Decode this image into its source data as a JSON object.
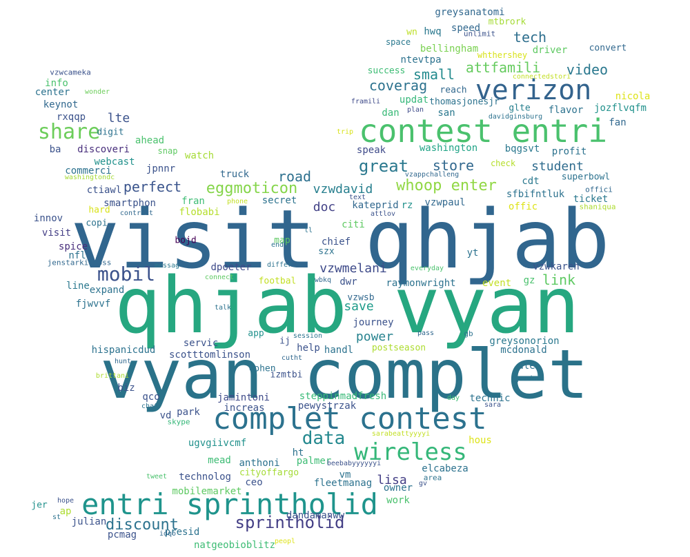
{
  "palette": {
    "viridis": [
      "#440154",
      "#472d7b",
      "#3b528b",
      "#2c728e",
      "#21918c",
      "#28ae80",
      "#5ec962",
      "#addc30",
      "#fde725"
    ],
    "background": "#ffffff"
  },
  "words": [
    {
      "text": "visit qhjab",
      "color": "#31668e"
    },
    {
      "text": "qhjab vyan",
      "color": "#26a780"
    },
    {
      "text": "vyan complet",
      "color": "#2a7289"
    },
    {
      "text": "contest entri",
      "color": "#4ac16d"
    },
    {
      "text": "complet contest",
      "color": "#2c728e"
    },
    {
      "text": "entri sprintholid",
      "color": "#1f948c"
    },
    {
      "text": "verizon",
      "color": "#33638d"
    },
    {
      "text": "wireless",
      "color": "#35b779"
    },
    {
      "text": "share",
      "color": "#6ccd5a"
    },
    {
      "text": "mobil",
      "color": "#3b528b"
    },
    {
      "text": "sprintholid",
      "color": "#433e85"
    },
    {
      "text": "data",
      "color": "#23888e"
    },
    {
      "text": "whoop enter",
      "color": "#90d743"
    },
    {
      "text": "great",
      "color": "#2a788e"
    },
    {
      "text": "eggmoticon",
      "color": "#85d54a"
    },
    {
      "text": "discount",
      "color": "#2c728e"
    },
    {
      "text": "attfamili",
      "color": "#65cb5e"
    },
    {
      "text": "video",
      "color": "#2a788e"
    },
    {
      "text": "coverag",
      "color": "#2c728e"
    },
    {
      "text": "store",
      "color": "#31688e"
    },
    {
      "text": "perfect",
      "color": "#3a548c"
    },
    {
      "text": "road",
      "color": "#2d708e"
    },
    {
      "text": "lte",
      "color": "#3b528b"
    },
    {
      "text": "link",
      "color": "#5ec962"
    },
    {
      "text": "tech",
      "color": "#2e6f8e"
    },
    {
      "text": "small",
      "color": "#238a8d"
    },
    {
      "text": "power",
      "color": "#26828e"
    },
    {
      "text": "vzwdavid",
      "color": "#277f8e"
    },
    {
      "text": "doc",
      "color": "#424186"
    },
    {
      "text": "vzwmelani",
      "color": "#3e4a89"
    },
    {
      "text": "student",
      "color": "#2f6c8e"
    },
    {
      "text": "save",
      "color": "#1e9b8a"
    },
    {
      "text": "lisa",
      "color": "#433e85"
    },
    {
      "text": "greysanatomi",
      "color": "#31688e"
    },
    {
      "text": "mtbrork",
      "color": "#a5db36"
    },
    {
      "text": "wn",
      "color": "#bddf26"
    },
    {
      "text": "hwq",
      "color": "#2a788e"
    },
    {
      "text": "speed",
      "color": "#31688e"
    },
    {
      "text": "unlimit",
      "color": "#3b528b"
    },
    {
      "text": "space",
      "color": "#2a788e"
    },
    {
      "text": "bellingham",
      "color": "#7ad151"
    },
    {
      "text": "driver",
      "color": "#5ec962"
    },
    {
      "text": "convert",
      "color": "#31688e"
    },
    {
      "text": "ntevtpa",
      "color": "#2c728e"
    },
    {
      "text": "whthershey",
      "color": "#d8e219"
    },
    {
      "text": "success",
      "color": "#3dbc74"
    },
    {
      "text": "connectedstori",
      "color": "#c2df23"
    },
    {
      "text": "vzwcameka",
      "color": "#3b528b"
    },
    {
      "text": "info",
      "color": "#4ac16d"
    },
    {
      "text": "center",
      "color": "#2c728e"
    },
    {
      "text": "wonder",
      "color": "#6ccd5a"
    },
    {
      "text": "reach",
      "color": "#31688e"
    },
    {
      "text": "nicola",
      "color": "#dde318"
    },
    {
      "text": "updat",
      "color": "#35b779"
    },
    {
      "text": "framili",
      "color": "#3e4a89"
    },
    {
      "text": "thomasjonesjr",
      "color": "#2c728e"
    },
    {
      "text": "glte",
      "color": "#277f8e"
    },
    {
      "text": "jozflvqfm",
      "color": "#21918c"
    },
    {
      "text": "keynot",
      "color": "#31688e"
    },
    {
      "text": "dan",
      "color": "#38b977"
    },
    {
      "text": "plan",
      "color": "#3e4a89"
    },
    {
      "text": "san",
      "color": "#2a788e"
    },
    {
      "text": "flavor",
      "color": "#2c728e"
    },
    {
      "text": "rxqqp",
      "color": "#3b528b"
    },
    {
      "text": "davidginsburg",
      "color": "#2c728e"
    },
    {
      "text": "fan",
      "color": "#31688e"
    },
    {
      "text": "digit",
      "color": "#2c728e"
    },
    {
      "text": "trip",
      "color": "#d8e219"
    },
    {
      "text": "ahead",
      "color": "#4ac16d"
    },
    {
      "text": "speak",
      "color": "#3e4a89"
    },
    {
      "text": "washington",
      "color": "#20a386"
    },
    {
      "text": "bqgsvt",
      "color": "#2a788e"
    },
    {
      "text": "profit",
      "color": "#2c728e"
    },
    {
      "text": "ba",
      "color": "#3b528b"
    },
    {
      "text": "discoveri",
      "color": "#472d7b"
    },
    {
      "text": "snap",
      "color": "#5ec962"
    },
    {
      "text": "watch",
      "color": "#a5db36"
    },
    {
      "text": "webcast",
      "color": "#21918c"
    },
    {
      "text": "check",
      "color": "#b5de2b"
    },
    {
      "text": "superbowl",
      "color": "#2c728e"
    },
    {
      "text": "commerci",
      "color": "#2c728e"
    },
    {
      "text": "jpnnr",
      "color": "#3b528b"
    },
    {
      "text": "truck",
      "color": "#31688e"
    },
    {
      "text": "vzappchalleng",
      "color": "#31688e"
    },
    {
      "text": "washingtondc",
      "color": "#a5db36"
    },
    {
      "text": "cdt",
      "color": "#2a788e"
    },
    {
      "text": "offici",
      "color": "#31688e"
    },
    {
      "text": "ctiawl",
      "color": "#3b528b"
    },
    {
      "text": "sfbifntluk",
      "color": "#2c728e"
    },
    {
      "text": "shaniqua",
      "color": "#addc30"
    },
    {
      "text": "fran",
      "color": "#3dbc74"
    },
    {
      "text": "secret",
      "color": "#2c728e"
    },
    {
      "text": "kateprid",
      "color": "#31688e"
    },
    {
      "text": "rz",
      "color": "#21918c"
    },
    {
      "text": "vzwpaul",
      "color": "#31688e"
    },
    {
      "text": "ticket",
      "color": "#2a788e"
    },
    {
      "text": "smartphon",
      "color": "#3b528b"
    },
    {
      "text": "phone",
      "color": "#c2df23"
    },
    {
      "text": "hard",
      "color": "#d8e219"
    },
    {
      "text": "flobabi",
      "color": "#b5de2b"
    },
    {
      "text": "offic",
      "color": "#dde318"
    },
    {
      "text": "innov",
      "color": "#3b528b"
    },
    {
      "text": "contract",
      "color": "#31688e"
    },
    {
      "text": "citi",
      "color": "#5ec962"
    },
    {
      "text": "attlov",
      "color": "#3b528b"
    },
    {
      "text": "copi",
      "color": "#2c728e"
    },
    {
      "text": "visit",
      "color": "#433e85"
    },
    {
      "text": "ll",
      "color": "#2c728e"
    },
    {
      "text": "bojd",
      "color": "#440154"
    },
    {
      "text": "map",
      "color": "#5ec962"
    },
    {
      "text": "chief",
      "color": "#3b528b"
    },
    {
      "text": "spice",
      "color": "#472d7b"
    },
    {
      "text": "nfl",
      "color": "#2c728e"
    },
    {
      "text": "end",
      "color": "#2c728e"
    },
    {
      "text": "szx",
      "color": "#2c728e"
    },
    {
      "text": "yt",
      "color": "#2c728e"
    },
    {
      "text": "jenstarkidross",
      "color": "#31688e"
    },
    {
      "text": "messag",
      "color": "#2a788e"
    },
    {
      "text": "differ",
      "color": "#2c728e"
    },
    {
      "text": "dpoeter",
      "color": "#3e4a89"
    },
    {
      "text": "vzwkaren",
      "color": "#3b528b"
    },
    {
      "text": "everyday",
      "color": "#4ac16d"
    },
    {
      "text": "expand",
      "color": "#2c728e"
    },
    {
      "text": "connect",
      "color": "#5ec962"
    },
    {
      "text": "footbal",
      "color": "#c2df23"
    },
    {
      "text": "wbkq",
      "color": "#31688e"
    },
    {
      "text": "dwr",
      "color": "#3b528b"
    },
    {
      "text": "raymonwright",
      "color": "#2c728e"
    },
    {
      "text": "event",
      "color": "#c2df23"
    },
    {
      "text": "gz",
      "color": "#4ac16d"
    },
    {
      "text": "line",
      "color": "#2a788e"
    },
    {
      "text": "fjwvvf",
      "color": "#2c728e"
    },
    {
      "text": "talk",
      "color": "#2c728e"
    },
    {
      "text": "vzwsb",
      "color": "#31688e"
    },
    {
      "text": "journey",
      "color": "#3b528b"
    },
    {
      "text": "app",
      "color": "#21918c"
    },
    {
      "text": "session",
      "color": "#2c728e"
    },
    {
      "text": "pass",
      "color": "#31688e"
    },
    {
      "text": "gb",
      "color": "#2c728e"
    },
    {
      "text": "greysonorion",
      "color": "#2a788e"
    },
    {
      "text": "servic",
      "color": "#3b528b"
    },
    {
      "text": "ij",
      "color": "#3b528b"
    },
    {
      "text": "help",
      "color": "#3b528b"
    },
    {
      "text": "handl",
      "color": "#2c728e"
    },
    {
      "text": "postseason",
      "color": "#addc30"
    },
    {
      "text": "mcdonald",
      "color": "#2c728e"
    },
    {
      "text": "hispanicdud",
      "color": "#2c728e"
    },
    {
      "text": "scotttomlinson",
      "color": "#3b528b"
    },
    {
      "text": "cutht",
      "color": "#31688e"
    },
    {
      "text": "ale",
      "color": "#2c728e"
    },
    {
      "text": "hunt",
      "color": "#31688e"
    },
    {
      "text": "cohen",
      "color": "#2c728e"
    },
    {
      "text": "izmtbi",
      "color": "#3b528b"
    },
    {
      "text": "special",
      "color": "#2c728e"
    },
    {
      "text": "brittani",
      "color": "#addc30"
    },
    {
      "text": "biz",
      "color": "#3b528b"
    },
    {
      "text": "steppinmadfresh",
      "color": "#38b977"
    },
    {
      "text": "qco",
      "color": "#3b528b"
    },
    {
      "text": "jamintoni",
      "color": "#3e4a89"
    },
    {
      "text": "day",
      "color": "#3dbc74"
    },
    {
      "text": "technic",
      "color": "#2c728e"
    },
    {
      "text": "chat",
      "color": "#2c728e"
    },
    {
      "text": "increas",
      "color": "#3b528b"
    },
    {
      "text": "pewystrzak",
      "color": "#3b528b"
    },
    {
      "text": "sara",
      "color": "#3b528b"
    },
    {
      "text": "vd",
      "color": "#3b528b"
    },
    {
      "text": "park",
      "color": "#3b528b"
    },
    {
      "text": "skype",
      "color": "#35b779"
    },
    {
      "text": "sarabeattyyyyi",
      "color": "#c2df23"
    },
    {
      "text": "ugvgiivcmf",
      "color": "#21918c"
    },
    {
      "text": "hous",
      "color": "#dde318"
    },
    {
      "text": "ht",
      "color": "#2c728e"
    },
    {
      "text": "mead",
      "color": "#3dbc74"
    },
    {
      "text": "palmer",
      "color": "#3dbc74"
    },
    {
      "text": "anthoni",
      "color": "#2c728e"
    },
    {
      "text": "beebabyyyyyyi",
      "color": "#3b528b"
    },
    {
      "text": "cityoffargo",
      "color": "#a5db36"
    },
    {
      "text": "elcabeza",
      "color": "#2c728e"
    },
    {
      "text": "technolog",
      "color": "#3b528b"
    },
    {
      "text": "vm",
      "color": "#2c728e"
    },
    {
      "text": "fleetmanag",
      "color": "#2c728e"
    },
    {
      "text": "area",
      "color": "#2c728e"
    },
    {
      "text": "tweet",
      "color": "#4ac16d"
    },
    {
      "text": "ceo",
      "color": "#3b528b"
    },
    {
      "text": "gv",
      "color": "#3b528b"
    },
    {
      "text": "owner",
      "color": "#2c728e"
    },
    {
      "text": "mobilemarket",
      "color": "#5ec962"
    },
    {
      "text": "ap",
      "color": "#addc30"
    },
    {
      "text": "hope",
      "color": "#3b528b"
    },
    {
      "text": "work",
      "color": "#4ac16d"
    },
    {
      "text": "jer",
      "color": "#21918c"
    },
    {
      "text": "st",
      "color": "#2c728e"
    },
    {
      "text": "julian",
      "color": "#3b528b"
    },
    {
      "text": "dandamanww",
      "color": "#3b528b"
    },
    {
      "text": "presid",
      "color": "#2c728e"
    },
    {
      "text": "pcmag",
      "color": "#3b528b"
    },
    {
      "text": "idqo",
      "color": "#31688e"
    },
    {
      "text": "natgeobioblitz",
      "color": "#3dbc74"
    },
    {
      "text": "peopl",
      "color": "#dde318"
    },
    {
      "text": "text",
      "color": "#3b528b"
    }
  ]
}
